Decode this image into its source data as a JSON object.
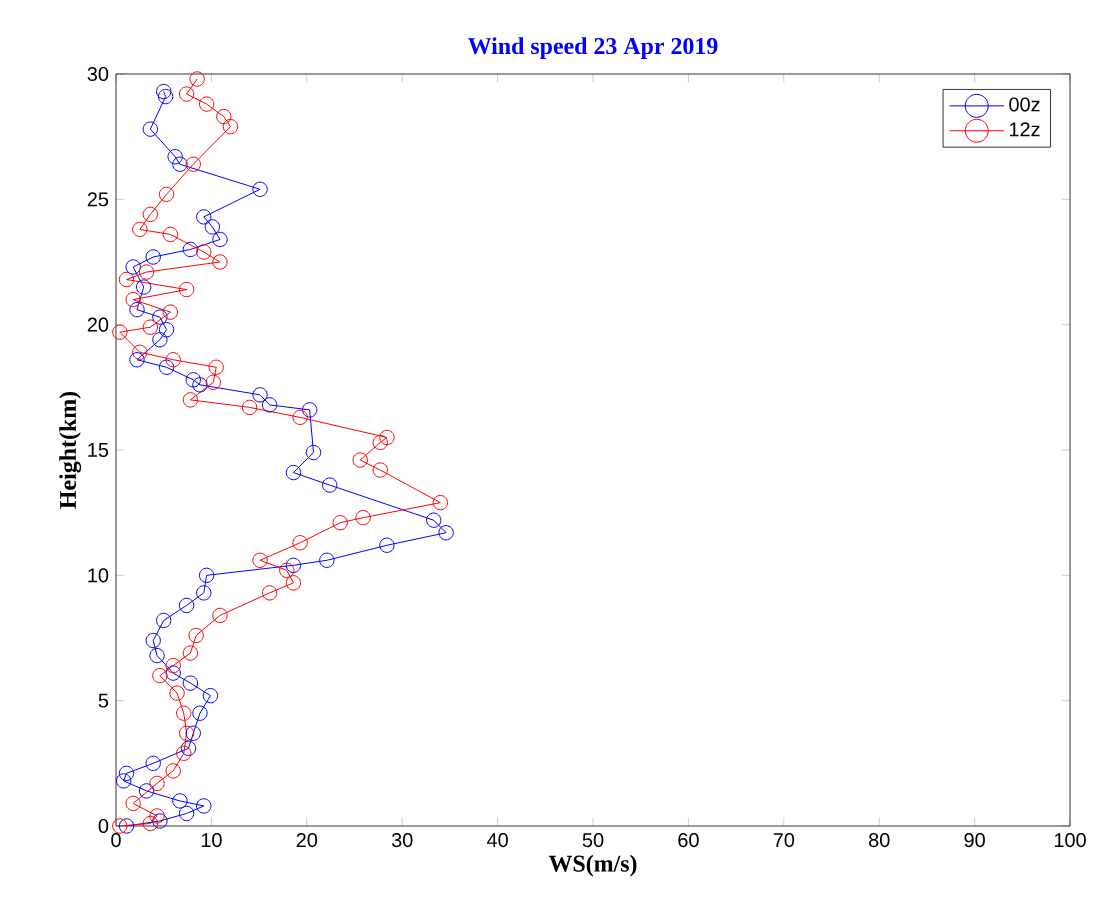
{
  "chart_data": {
    "type": "line",
    "title": "Wind speed 23 Apr 2019",
    "xlabel": "WS(m/s)",
    "ylabel": "Height(km)",
    "xlim": [
      0,
      100
    ],
    "xticks": [
      0,
      10,
      20,
      30,
      40,
      50,
      60,
      70,
      80,
      90,
      100
    ],
    "ylim": [
      0,
      30
    ],
    "yticks": [
      0,
      5,
      10,
      15,
      20,
      25,
      30
    ],
    "grid": false,
    "legend": "top right",
    "marker": "circle",
    "line_style": "solid",
    "series": [
      {
        "name": "00z",
        "color": "#0000ff",
        "x": [
          1.1,
          4.6,
          7.4,
          9.2,
          6.7,
          3.2,
          0.8,
          1.1,
          3.9,
          7.6,
          8.1,
          8.8,
          9.9,
          7.8,
          6.0,
          4.3,
          3.9,
          5.0,
          7.4,
          9.2,
          9.5,
          18.6,
          22.1,
          28.4,
          34.6,
          33.3,
          22.4,
          18.6,
          20.7,
          20.3,
          16.1,
          15.1,
          8.8,
          8.1,
          5.3,
          2.2,
          4.6,
          5.3,
          4.6,
          2.2,
          2.9,
          1.8,
          3.9,
          7.8,
          10.9,
          10.1,
          9.2,
          15.1,
          6.7,
          6.2,
          3.6,
          5.2,
          5.0
        ],
        "values": [
          0.0,
          0.2,
          0.5,
          0.8,
          1.0,
          1.4,
          1.8,
          2.1,
          2.5,
          3.1,
          3.7,
          4.5,
          5.2,
          5.7,
          6.1,
          6.8,
          7.4,
          8.2,
          8.8,
          9.3,
          10.0,
          10.4,
          10.6,
          11.2,
          11.7,
          12.2,
          13.6,
          14.1,
          14.9,
          16.6,
          16.8,
          17.2,
          17.6,
          17.8,
          18.3,
          18.6,
          19.4,
          19.8,
          20.3,
          20.6,
          21.5,
          22.3,
          22.7,
          23.0,
          23.4,
          23.9,
          24.3,
          25.4,
          26.4,
          26.7,
          27.8,
          29.1,
          29.3
        ]
      },
      {
        "name": "12z",
        "color": "#ff0000",
        "x": [
          0.4,
          3.6,
          4.3,
          1.8,
          4.3,
          6.0,
          7.1,
          7.4,
          7.1,
          6.4,
          4.6,
          6.0,
          7.8,
          8.4,
          10.9,
          16.1,
          18.6,
          17.9,
          15.1,
          19.3,
          23.5,
          25.9,
          34.0,
          27.7,
          25.6,
          27.7,
          28.4,
          19.3,
          14.0,
          7.8,
          10.2,
          10.5,
          6.0,
          2.5,
          0.4,
          3.6,
          5.7,
          1.8,
          7.4,
          1.1,
          3.2,
          10.9,
          9.2,
          5.7,
          2.5,
          3.6,
          5.3,
          8.1,
          12.0,
          11.3,
          9.5,
          7.4,
          8.5
        ],
        "values": [
          0.0,
          0.1,
          0.4,
          0.9,
          1.7,
          2.2,
          2.9,
          3.7,
          4.5,
          5.3,
          6.0,
          6.4,
          6.9,
          7.6,
          8.4,
          9.3,
          9.7,
          10.2,
          10.6,
          11.3,
          12.1,
          12.3,
          12.9,
          14.2,
          14.6,
          15.3,
          15.5,
          16.3,
          16.7,
          17.0,
          17.7,
          18.3,
          18.6,
          18.9,
          19.7,
          19.9,
          20.5,
          21.0,
          21.4,
          21.8,
          22.1,
          22.5,
          22.9,
          23.6,
          23.8,
          24.4,
          25.2,
          26.4,
          27.9,
          28.3,
          28.8,
          29.2,
          29.8
        ]
      }
    ]
  }
}
